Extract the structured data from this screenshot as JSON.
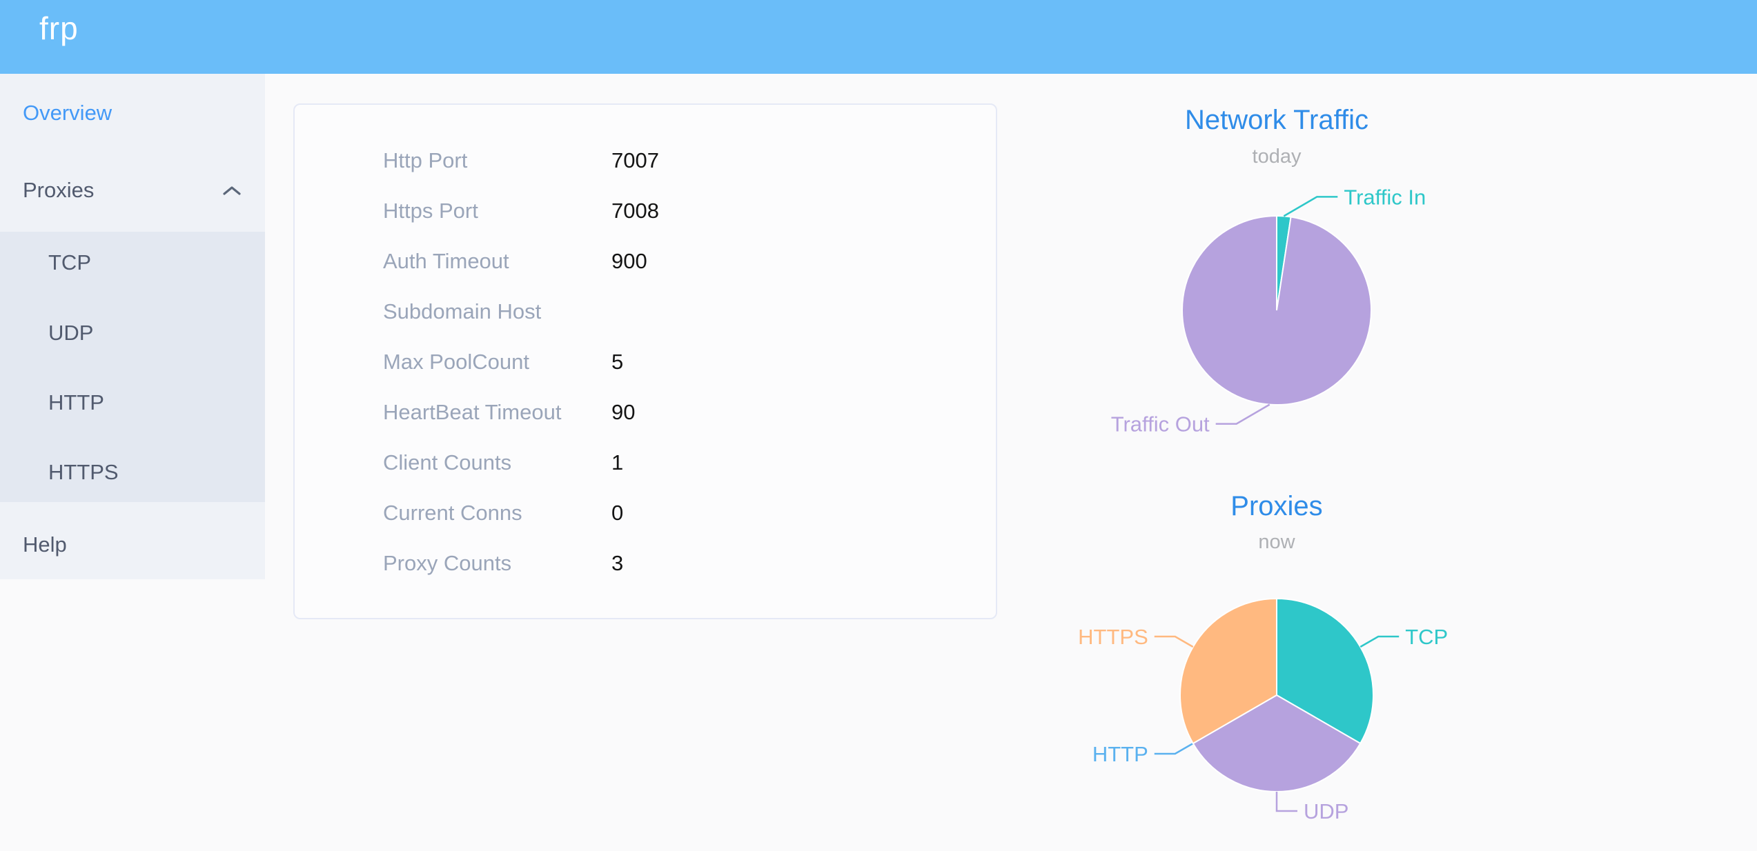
{
  "header": {
    "logo": "frp"
  },
  "sidebar": {
    "overview": "Overview",
    "proxies": "Proxies",
    "submenu": [
      "TCP",
      "UDP",
      "HTTP",
      "HTTPS"
    ],
    "help": "Help",
    "active_item": "Overview",
    "proxies_expanded": true
  },
  "server_info": {
    "rows": [
      {
        "label": "Http Port",
        "value": "7007"
      },
      {
        "label": "Https Port",
        "value": "7008"
      },
      {
        "label": "Auth Timeout",
        "value": "900"
      },
      {
        "label": "Subdomain Host",
        "value": ""
      },
      {
        "label": "Max PoolCount",
        "value": "5"
      },
      {
        "label": "HeartBeat Timeout",
        "value": "90"
      },
      {
        "label": "Client Counts",
        "value": "1"
      },
      {
        "label": "Current Conns",
        "value": "0"
      },
      {
        "label": "Proxy Counts",
        "value": "3"
      }
    ]
  },
  "chart_data": [
    {
      "type": "pie",
      "title": "Network Traffic",
      "subtitle": "today",
      "legend_position": "none",
      "series": [
        {
          "name": "Traffic In",
          "value": 2.4,
          "color": "#2ec7c9"
        },
        {
          "name": "Traffic Out",
          "value": 97.6,
          "color": "#b6a2de"
        }
      ]
    },
    {
      "type": "pie",
      "title": "Proxies",
      "subtitle": "now",
      "legend_position": "none",
      "series": [
        {
          "name": "TCP",
          "value": 1,
          "color": "#2ec7c9"
        },
        {
          "name": "UDP",
          "value": 1,
          "color": "#b6a2de"
        },
        {
          "name": "HTTP",
          "value": 0,
          "color": "#5ab1ef"
        },
        {
          "name": "HTTPS",
          "value": 1,
          "color": "#ffb980"
        }
      ]
    }
  ],
  "theme": {
    "header_bg": "#6abdf9",
    "accent_blue": "#2f8ce8",
    "sidebar_active": "#4399f7",
    "teal": "#2ec7c9",
    "purple": "#b6a2de",
    "light_blue": "#5ab1ef",
    "orange": "#ffb980"
  }
}
